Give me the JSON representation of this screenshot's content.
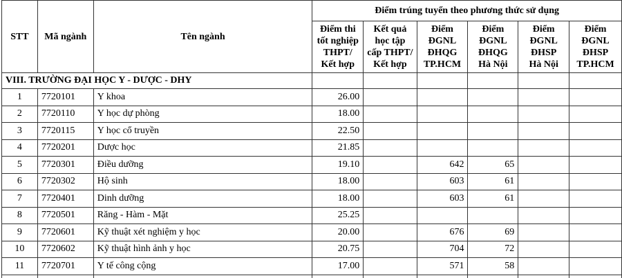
{
  "header": {
    "stt": "STT",
    "code": "Mã ngành",
    "name": "Tên ngành",
    "group": "Điểm trúng tuyển theo phương thức sử dụng",
    "methods": [
      [
        "Điểm thi",
        "tốt nghiệp",
        "THPT/",
        "Kết hợp"
      ],
      [
        "Kết quả",
        "học tập",
        "cấp THPT/",
        "Kết hợp"
      ],
      [
        "Điểm",
        "ĐGNL",
        "ĐHQG",
        "TP.HCM"
      ],
      [
        "Điểm",
        "ĐGNL",
        "ĐHQG",
        "Hà Nội"
      ],
      [
        "Điểm",
        "ĐGNL",
        "ĐHSP",
        "Hà Nội"
      ],
      [
        "Điểm",
        "ĐGNL",
        "ĐHSP",
        "TP.HCM"
      ]
    ]
  },
  "section": "VIII. TRƯỜNG ĐẠI HỌC Y - DƯỢC - DHY",
  "table": {
    "rows": [
      [
        "1",
        "7720101",
        "Y khoa",
        "26.00",
        null,
        null,
        null,
        null,
        null
      ],
      [
        "2",
        "7720110",
        "Y học dự phòng",
        "18.00",
        null,
        null,
        null,
        null,
        null
      ],
      [
        "3",
        "7720115",
        "Y học cổ truyền",
        "22.50",
        null,
        null,
        null,
        null,
        null
      ],
      [
        "4",
        "7720201",
        "Dược học",
        "21.85",
        null,
        null,
        null,
        null,
        null
      ],
      [
        "5",
        "7720301",
        "Điều dưỡng",
        "19.10",
        null,
        "642",
        "65",
        null,
        null
      ],
      [
        "6",
        "7720302",
        "Hộ sinh",
        "18.00",
        null,
        "603",
        "61",
        null,
        null
      ],
      [
        "7",
        "7720401",
        "Dinh dưỡng",
        "18.00",
        null,
        "603",
        "61",
        null,
        null
      ],
      [
        "8",
        "7720501",
        "Răng - Hàm - Mặt",
        "25.25",
        null,
        null,
        null,
        null,
        null
      ],
      [
        "9",
        "7720601",
        "Kỹ thuật xét nghiệm y học",
        "20.00",
        null,
        "676",
        "69",
        null,
        null
      ],
      [
        "10",
        "7720602",
        "Kỹ thuật hình ảnh y học",
        "20.75",
        null,
        "704",
        "72",
        null,
        null
      ],
      [
        "11",
        "7720701",
        "Y tế công cộng",
        "17.00",
        null,
        "571",
        "58",
        null,
        null
      ]
    ]
  }
}
